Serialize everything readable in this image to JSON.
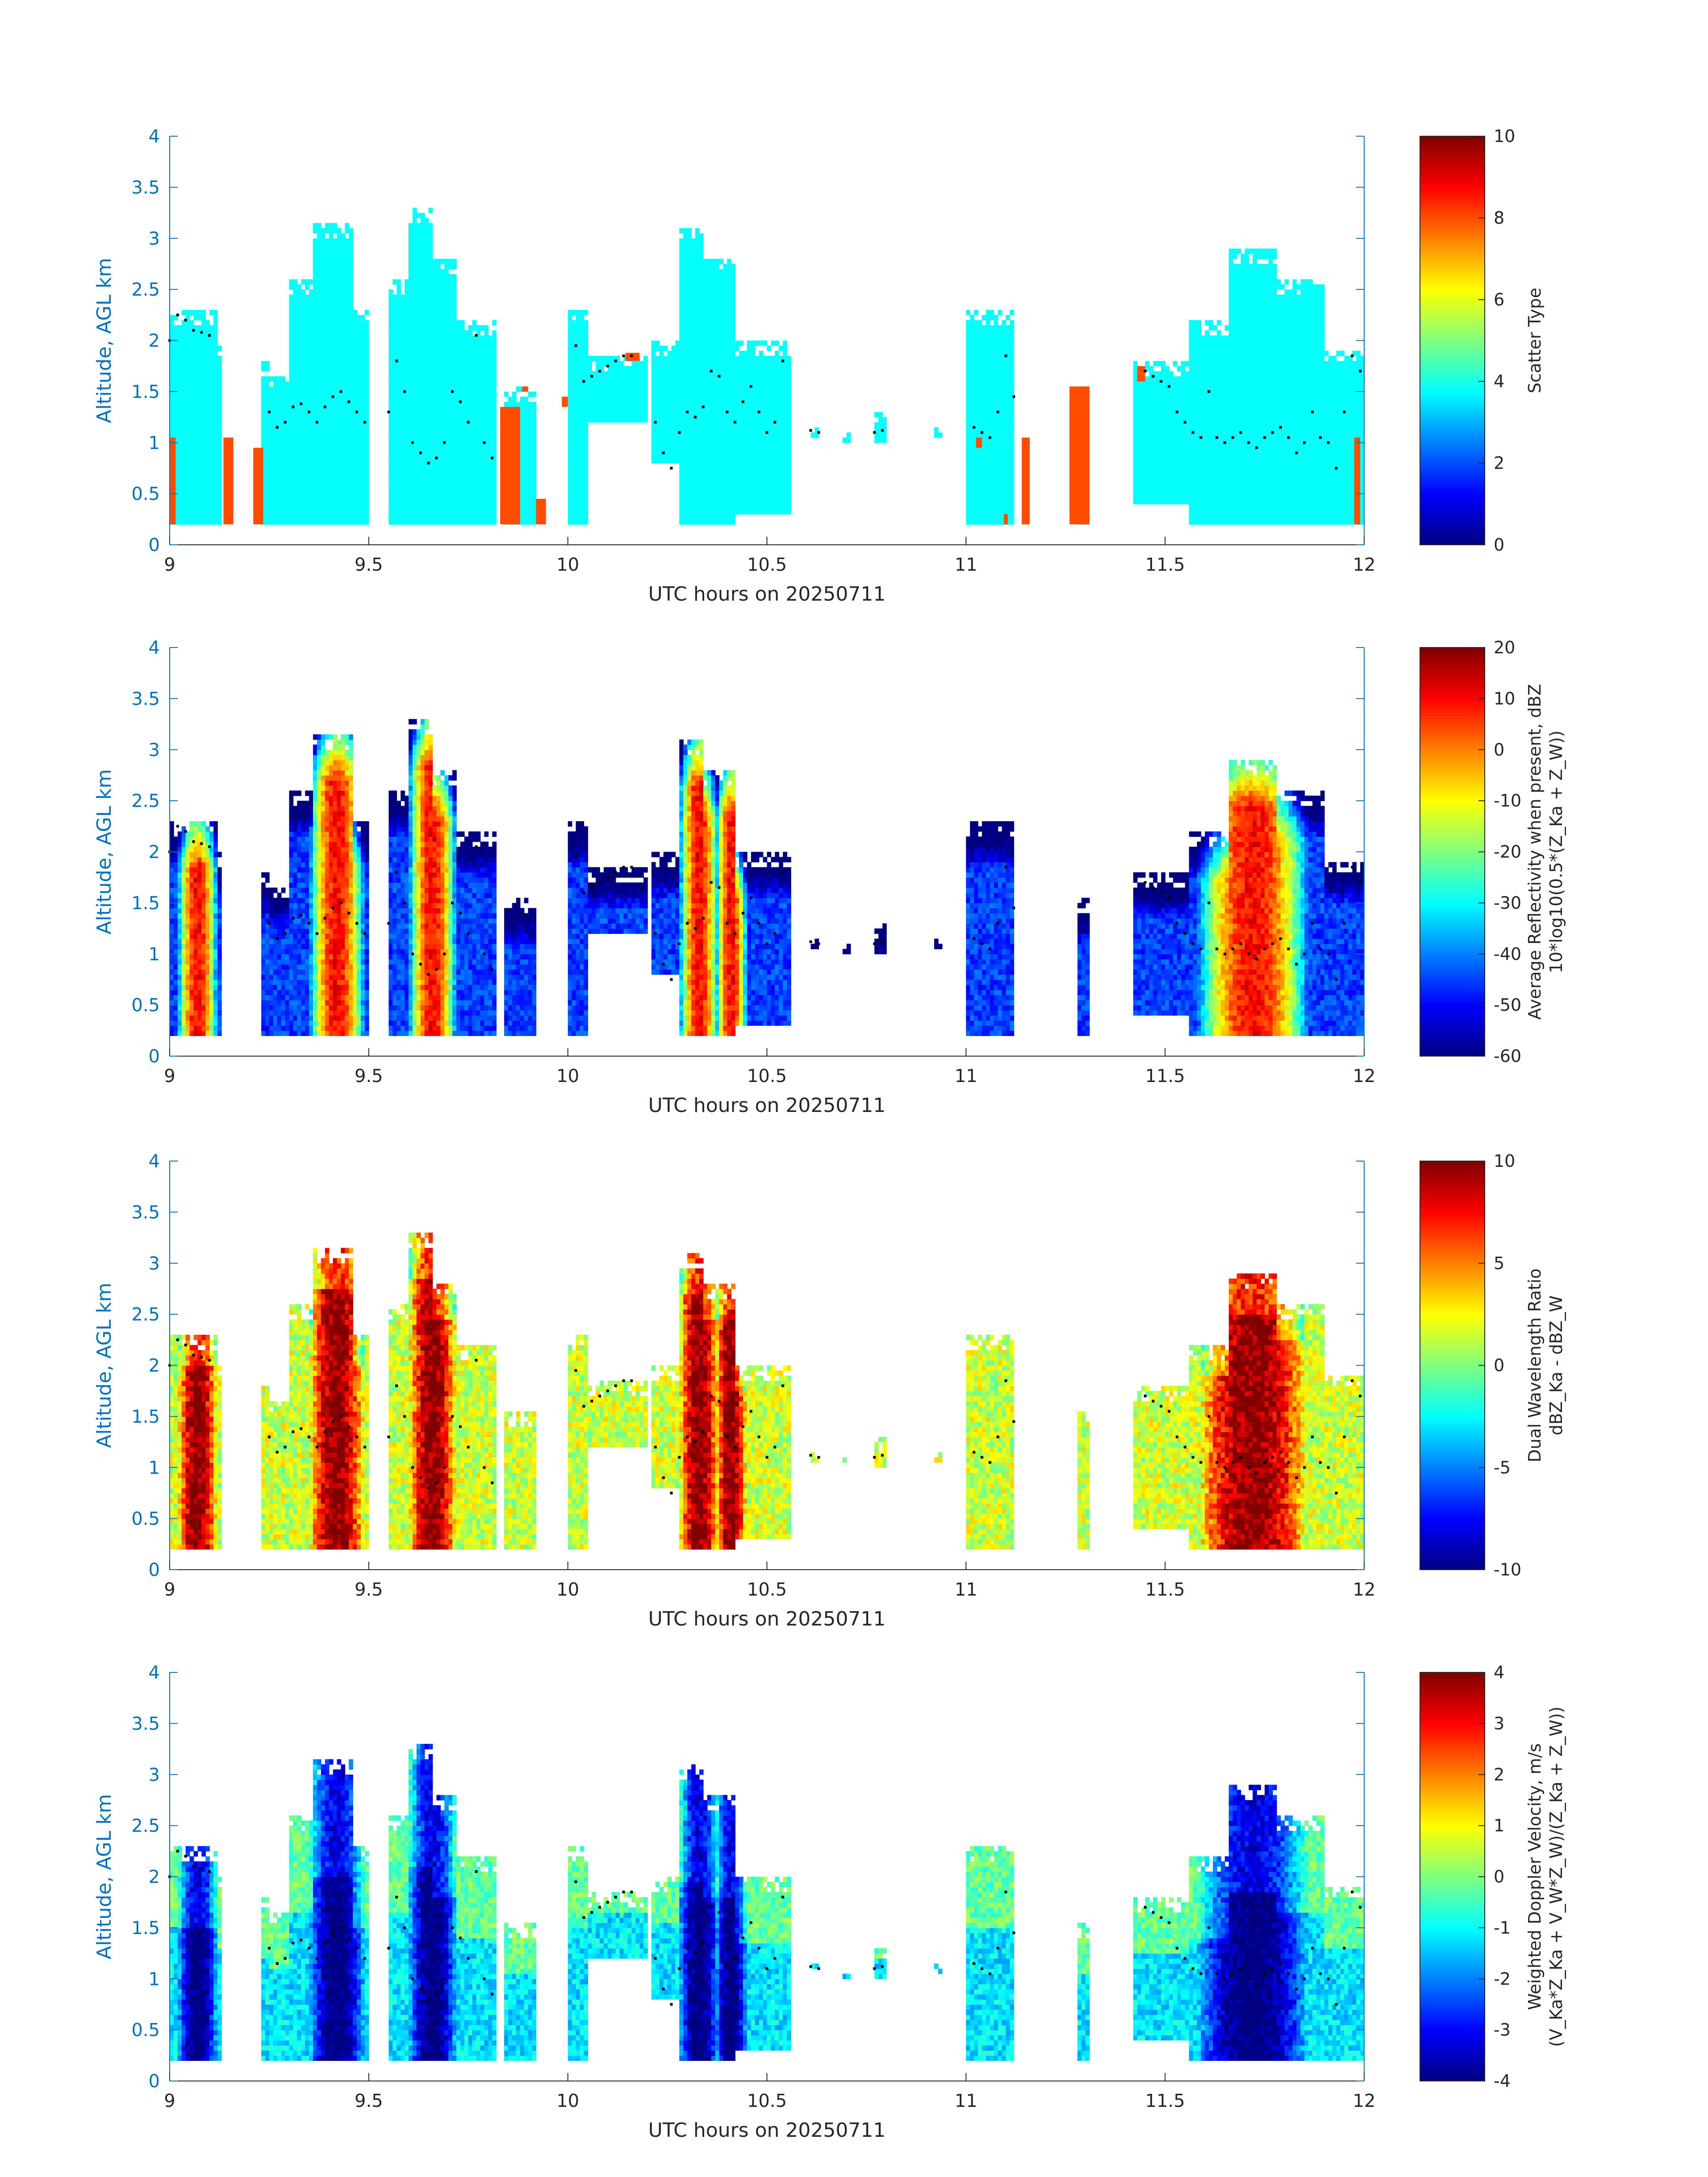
{
  "figure": {
    "date": "20250711",
    "xlabel": "UTC hours on 20250711",
    "ylabel": "Altitude, AGL km",
    "colormap": "jet"
  },
  "chart_data": [
    {
      "type": "heatmap",
      "panel": "scatter-type",
      "xlim": [
        9,
        12
      ],
      "ylim": [
        0,
        4
      ],
      "xticks": [
        "9",
        "9.5",
        "10",
        "10.5",
        "11",
        "11.5",
        "12"
      ],
      "yticks": [
        "0",
        "0.5",
        "1",
        "1.5",
        "2",
        "2.5",
        "3",
        "3.5",
        "4"
      ],
      "xlabel": "UTC hours on 20250711",
      "ylabel": "Altitude, AGL km",
      "colorbar": {
        "label": "Scatter Type",
        "clim": [
          0,
          10
        ],
        "ticks": [
          "0",
          "2",
          "4",
          "6",
          "8",
          "10"
        ]
      },
      "mode": "categorical",
      "category_values": {
        "main": 3.8,
        "other": 8.0
      }
    },
    {
      "type": "heatmap",
      "panel": "reflectivity",
      "xlim": [
        9,
        12
      ],
      "ylim": [
        0,
        4
      ],
      "xticks": [
        "9",
        "9.5",
        "10",
        "10.5",
        "11",
        "11.5",
        "12"
      ],
      "yticks": [
        "0",
        "0.5",
        "1",
        "1.5",
        "2",
        "2.5",
        "3",
        "3.5",
        "4"
      ],
      "xlabel": "UTC hours on 20250711",
      "ylabel": "Altitude, AGL km",
      "colorbar": {
        "label": "Average Reflectivity when present, dBZ",
        "label2": "10*log10(0.5*(Z_Ka + Z_W))",
        "clim": [
          -60,
          20
        ],
        "ticks": [
          "-60",
          "-50",
          "-40",
          "-30",
          "-20",
          "-10",
          "0",
          "10",
          "20"
        ]
      },
      "mode": "reflectivity"
    },
    {
      "type": "heatmap",
      "panel": "dwr",
      "xlim": [
        9,
        12
      ],
      "ylim": [
        0,
        4
      ],
      "xticks": [
        "9",
        "9.5",
        "10",
        "10.5",
        "11",
        "11.5",
        "12"
      ],
      "yticks": [
        "0",
        "0.5",
        "1",
        "1.5",
        "2",
        "2.5",
        "3",
        "3.5",
        "4"
      ],
      "xlabel": "UTC hours on 20250711",
      "ylabel": "Altitude, AGL km",
      "colorbar": {
        "label": "Dual Wavelength Ratio",
        "label2": "dBZ_Ka - dBZ_W",
        "clim": [
          -10,
          10
        ],
        "ticks": [
          "-10",
          "-5",
          "0",
          "5",
          "10"
        ]
      },
      "mode": "dwr"
    },
    {
      "type": "heatmap",
      "panel": "doppler",
      "xlim": [
        9,
        12
      ],
      "ylim": [
        0,
        4
      ],
      "xticks": [
        "9",
        "9.5",
        "10",
        "10.5",
        "11",
        "11.5",
        "12"
      ],
      "yticks": [
        "0",
        "0.5",
        "1",
        "1.5",
        "2",
        "2.5",
        "3",
        "3.5",
        "4"
      ],
      "xlabel": "UTC hours on 20250711",
      "ylabel": "Altitude, AGL km",
      "colorbar": {
        "label": "Weighted Doppler Velocity, m/s",
        "label2": "(V_Ka*Z_Ka + V_W*Z_W)/(Z_Ka + Z_W))",
        "clim": [
          -4,
          4
        ],
        "ticks": [
          "-4",
          "-3",
          "-2",
          "-1",
          "0",
          "1",
          "2",
          "3",
          "4"
        ]
      },
      "mode": "doppler"
    }
  ],
  "echo_columns": [
    {
      "t0": 9.0,
      "t1": 9.12,
      "bot": 0.2,
      "top": 2.3
    },
    {
      "t0": 9.12,
      "t1": 9.13,
      "bot": 0.2,
      "top": 2.0
    },
    {
      "t0": 9.23,
      "t1": 9.25,
      "bot": 0.2,
      "top": 1.8
    },
    {
      "t0": 9.25,
      "t1": 9.33,
      "bot": 0.2,
      "top": 1.7
    },
    {
      "t0": 9.3,
      "t1": 9.36,
      "bot": 0.2,
      "top": 2.6
    },
    {
      "t0": 9.36,
      "t1": 9.46,
      "bot": 0.2,
      "top": 3.15
    },
    {
      "t0": 9.46,
      "t1": 9.5,
      "bot": 0.2,
      "top": 2.3
    },
    {
      "t0": 9.55,
      "t1": 9.6,
      "bot": 0.2,
      "top": 2.6
    },
    {
      "t0": 9.6,
      "t1": 9.66,
      "bot": 0.2,
      "top": 3.3
    },
    {
      "t0": 9.66,
      "t1": 9.72,
      "bot": 0.2,
      "top": 2.8
    },
    {
      "t0": 9.72,
      "t1": 9.82,
      "bot": 0.2,
      "top": 2.2
    },
    {
      "t0": 9.84,
      "t1": 9.92,
      "bot": 0.2,
      "top": 1.55
    },
    {
      "t0": 10.0,
      "t1": 10.05,
      "bot": 0.2,
      "top": 2.3
    },
    {
      "t0": 10.05,
      "t1": 10.2,
      "bot": 1.2,
      "top": 1.9
    },
    {
      "t0": 10.21,
      "t1": 10.3,
      "bot": 0.8,
      "top": 2.0
    },
    {
      "t0": 10.28,
      "t1": 10.34,
      "bot": 0.2,
      "top": 3.1
    },
    {
      "t0": 10.34,
      "t1": 10.42,
      "bot": 0.2,
      "top": 2.8
    },
    {
      "t0": 10.42,
      "t1": 10.56,
      "bot": 0.3,
      "top": 2.0
    },
    {
      "t0": 10.61,
      "t1": 10.63,
      "bot": 1.05,
      "top": 1.2
    },
    {
      "t0": 10.69,
      "t1": 10.71,
      "bot": 1.0,
      "top": 1.15
    },
    {
      "t0": 10.77,
      "t1": 10.8,
      "bot": 1.0,
      "top": 1.3
    },
    {
      "t0": 10.92,
      "t1": 10.94,
      "bot": 1.05,
      "top": 1.2
    },
    {
      "t0": 11.0,
      "t1": 11.12,
      "bot": 0.2,
      "top": 2.3
    },
    {
      "t0": 11.28,
      "t1": 11.31,
      "bot": 0.2,
      "top": 1.55
    },
    {
      "t0": 11.42,
      "t1": 11.56,
      "bot": 0.4,
      "top": 1.8
    },
    {
      "t0": 11.56,
      "t1": 11.66,
      "bot": 0.2,
      "top": 2.2
    },
    {
      "t0": 11.66,
      "t1": 11.78,
      "bot": 0.2,
      "top": 2.9
    },
    {
      "t0": 11.78,
      "t1": 11.9,
      "bot": 0.2,
      "top": 2.6
    },
    {
      "t0": 11.9,
      "t1": 12.0,
      "bot": 0.2,
      "top": 1.95
    }
  ],
  "other_type_blocks": [
    {
      "t0": 9.0,
      "t1": 9.015,
      "bot": 0.2,
      "top": 1.05
    },
    {
      "t0": 9.135,
      "t1": 9.16,
      "bot": 0.2,
      "top": 1.05
    },
    {
      "t0": 9.21,
      "t1": 9.235,
      "bot": 0.2,
      "top": 0.95
    },
    {
      "t0": 9.83,
      "t1": 9.88,
      "bot": 0.2,
      "top": 1.35
    },
    {
      "t0": 9.92,
      "t1": 9.945,
      "bot": 0.2,
      "top": 0.45
    },
    {
      "t0": 9.885,
      "t1": 9.9,
      "bot": 1.5,
      "top": 1.55
    },
    {
      "t0": 9.985,
      "t1": 10.0,
      "bot": 1.35,
      "top": 1.45
    },
    {
      "t0": 10.145,
      "t1": 10.18,
      "bot": 1.8,
      "top": 1.88
    },
    {
      "t0": 11.025,
      "t1": 11.04,
      "bot": 0.95,
      "top": 1.05
    },
    {
      "t0": 11.095,
      "t1": 11.105,
      "bot": 0.2,
      "top": 0.3
    },
    {
      "t0": 11.14,
      "t1": 11.16,
      "bot": 0.2,
      "top": 1.05
    },
    {
      "t0": 11.26,
      "t1": 11.31,
      "bot": 0.2,
      "top": 1.55
    },
    {
      "t0": 11.43,
      "t1": 11.45,
      "bot": 1.6,
      "top": 1.75
    },
    {
      "t0": 11.975,
      "t1": 11.99,
      "bot": 0.2,
      "top": 1.05
    }
  ],
  "storm_cores": [
    {
      "t": 9.07,
      "w": 0.05
    },
    {
      "t": 9.42,
      "w": 0.07
    },
    {
      "t": 9.66,
      "w": 0.06
    },
    {
      "t": 10.33,
      "w": 0.05
    },
    {
      "t": 10.41,
      "w": 0.04
    },
    {
      "t": 11.72,
      "w": 0.14
    }
  ],
  "cloud_base_points": [
    [
      9.0,
      2.0
    ],
    [
      9.02,
      2.25
    ],
    [
      9.04,
      2.2
    ],
    [
      9.06,
      2.1
    ],
    [
      9.08,
      2.08
    ],
    [
      9.1,
      2.05
    ],
    [
      9.25,
      1.3
    ],
    [
      9.27,
      1.15
    ],
    [
      9.29,
      1.2
    ],
    [
      9.31,
      1.35
    ],
    [
      9.33,
      1.38
    ],
    [
      9.35,
      1.3
    ],
    [
      9.37,
      1.2
    ],
    [
      9.39,
      1.35
    ],
    [
      9.41,
      1.45
    ],
    [
      9.43,
      1.5
    ],
    [
      9.45,
      1.4
    ],
    [
      9.47,
      1.3
    ],
    [
      9.49,
      1.2
    ],
    [
      9.55,
      1.3
    ],
    [
      9.57,
      1.8
    ],
    [
      9.59,
      1.5
    ],
    [
      9.61,
      1.0
    ],
    [
      9.63,
      0.9
    ],
    [
      9.65,
      0.8
    ],
    [
      9.67,
      0.85
    ],
    [
      9.69,
      1.0
    ],
    [
      9.71,
      1.5
    ],
    [
      9.73,
      1.4
    ],
    [
      9.75,
      1.2
    ],
    [
      9.77,
      2.05
    ],
    [
      9.79,
      1.0
    ],
    [
      9.81,
      0.85
    ],
    [
      10.02,
      1.95
    ],
    [
      10.04,
      1.6
    ],
    [
      10.06,
      1.65
    ],
    [
      10.08,
      1.7
    ],
    [
      10.1,
      1.75
    ],
    [
      10.12,
      1.8
    ],
    [
      10.14,
      1.85
    ],
    [
      10.16,
      1.85
    ],
    [
      10.22,
      1.2
    ],
    [
      10.24,
      0.9
    ],
    [
      10.26,
      0.75
    ],
    [
      10.28,
      1.1
    ],
    [
      10.3,
      1.3
    ],
    [
      10.32,
      1.25
    ],
    [
      10.34,
      1.35
    ],
    [
      10.36,
      1.7
    ],
    [
      10.38,
      1.65
    ],
    [
      10.4,
      1.3
    ],
    [
      10.42,
      1.2
    ],
    [
      10.44,
      1.4
    ],
    [
      10.46,
      1.55
    ],
    [
      10.48,
      1.3
    ],
    [
      10.5,
      1.1
    ],
    [
      10.52,
      1.2
    ],
    [
      10.54,
      1.8
    ],
    [
      10.61,
      1.12
    ],
    [
      10.63,
      1.1
    ],
    [
      10.77,
      1.1
    ],
    [
      10.79,
      1.12
    ],
    [
      11.02,
      1.15
    ],
    [
      11.04,
      1.1
    ],
    [
      11.06,
      1.05
    ],
    [
      11.08,
      1.3
    ],
    [
      11.1,
      1.85
    ],
    [
      11.12,
      1.45
    ],
    [
      11.45,
      1.7
    ],
    [
      11.47,
      1.65
    ],
    [
      11.49,
      1.6
    ],
    [
      11.51,
      1.55
    ],
    [
      11.53,
      1.3
    ],
    [
      11.55,
      1.2
    ],
    [
      11.57,
      1.1
    ],
    [
      11.59,
      1.05
    ],
    [
      11.61,
      1.5
    ],
    [
      11.63,
      1.05
    ],
    [
      11.65,
      1.0
    ],
    [
      11.67,
      1.05
    ],
    [
      11.69,
      1.1
    ],
    [
      11.71,
      1.0
    ],
    [
      11.73,
      0.95
    ],
    [
      11.75,
      1.05
    ],
    [
      11.77,
      1.1
    ],
    [
      11.79,
      1.15
    ],
    [
      11.81,
      1.05
    ],
    [
      11.83,
      0.9
    ],
    [
      11.85,
      1.0
    ],
    [
      11.87,
      1.3
    ],
    [
      11.89,
      1.05
    ],
    [
      11.91,
      1.0
    ],
    [
      11.93,
      0.75
    ],
    [
      11.95,
      1.3
    ],
    [
      11.97,
      1.85
    ],
    [
      11.99,
      1.7
    ]
  ]
}
